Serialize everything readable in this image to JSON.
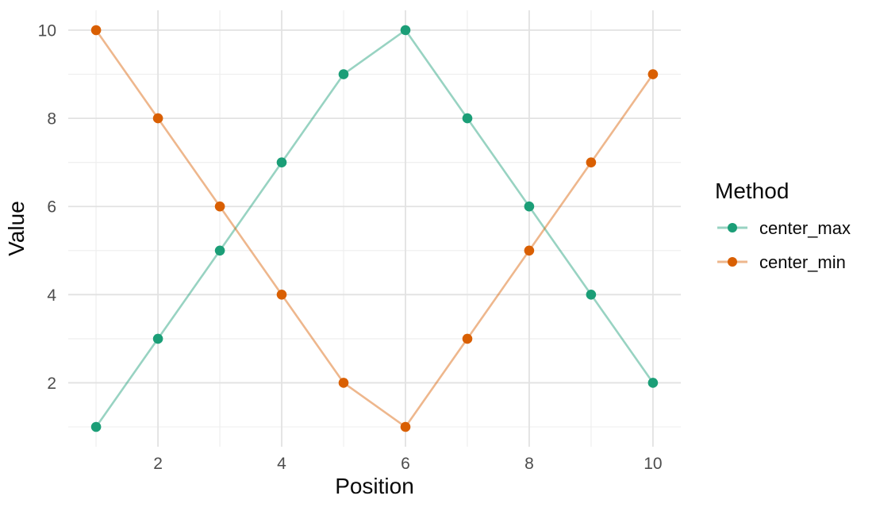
{
  "chart_data": {
    "type": "line",
    "title": "",
    "xlabel": "Position",
    "ylabel": "Value",
    "x": [
      1,
      2,
      3,
      4,
      5,
      6,
      7,
      8,
      9,
      10
    ],
    "series": [
      {
        "name": "center_max",
        "values": [
          1,
          3,
          5,
          7,
          9,
          10,
          8,
          6,
          4,
          2
        ],
        "point_color": "#1B9E77",
        "line_color": "rgba(27,158,119,0.45)"
      },
      {
        "name": "center_min",
        "values": [
          10,
          8,
          6,
          4,
          2,
          1,
          3,
          5,
          7,
          9
        ],
        "point_color": "#D95F02",
        "line_color": "rgba(217,95,2,0.45)"
      }
    ],
    "xticks": [
      2,
      4,
      6,
      8,
      10
    ],
    "yticks": [
      2,
      4,
      6,
      8,
      10
    ],
    "xticks_minor": [
      1,
      3,
      5,
      7,
      9
    ],
    "yticks_minor": [
      1,
      3,
      5,
      7,
      9
    ],
    "xlim": [
      0.55,
      10.45
    ],
    "ylim": [
      0.55,
      10.45
    ],
    "grid": "major+minor",
    "legend": {
      "title": "Method",
      "position": "right",
      "entries": [
        "center_max",
        "center_min"
      ]
    }
  },
  "style": {
    "background": "#FFFFFF",
    "grid_major_color": "#E2E2E2",
    "grid_minor_color": "#EDEDED",
    "tick_label_color": "#4D4D4D",
    "axis_title_color": "#0A0A0A",
    "legend_text_color": "#0A0A0A"
  }
}
